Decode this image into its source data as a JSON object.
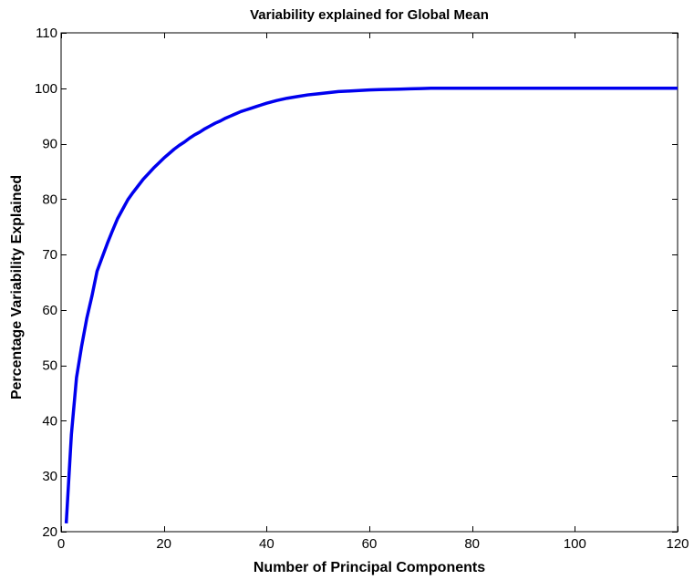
{
  "chart_data": {
    "type": "line",
    "title": "Variability explained for Global Mean",
    "xlabel": "Number of Principal Components",
    "ylabel": "Percentage Variability Explained",
    "xlim": [
      0,
      120
    ],
    "ylim": [
      20,
      110
    ],
    "xticks": [
      0,
      20,
      40,
      60,
      80,
      100,
      120
    ],
    "yticks": [
      20,
      30,
      40,
      50,
      60,
      70,
      80,
      90,
      100,
      110
    ],
    "xtick_labels": [
      "0",
      "20",
      "40",
      "60",
      "80",
      "100",
      "120"
    ],
    "ytick_labels": [
      "20",
      "30",
      "40",
      "50",
      "60",
      "70",
      "80",
      "90",
      "100",
      "110"
    ],
    "grid": false,
    "series": [
      {
        "color": "#0000ee",
        "x": [
          1,
          2,
          3,
          4,
          5,
          6,
          7,
          8,
          9,
          10,
          11,
          12,
          13,
          14,
          15,
          16,
          17,
          18,
          19,
          20,
          21,
          22,
          23,
          24,
          25,
          26,
          27,
          28,
          29,
          30,
          31,
          32,
          33,
          34,
          35,
          36,
          37,
          38,
          39,
          40,
          42,
          44,
          46,
          48,
          50,
          52,
          54,
          56,
          58,
          60,
          62,
          64,
          66,
          68,
          70,
          72,
          75,
          80,
          90,
          100,
          110,
          120
        ],
        "y": [
          21.5,
          37.5,
          47.8,
          53.5,
          58.5,
          62.5,
          67.0,
          69.5,
          72.0,
          74.3,
          76.5,
          78.2,
          79.9,
          81.2,
          82.4,
          83.6,
          84.6,
          85.6,
          86.5,
          87.4,
          88.2,
          89.0,
          89.7,
          90.3,
          91.0,
          91.6,
          92.1,
          92.7,
          93.2,
          93.7,
          94.1,
          94.6,
          95.0,
          95.4,
          95.8,
          96.1,
          96.4,
          96.7,
          97.0,
          97.3,
          97.8,
          98.2,
          98.5,
          98.8,
          99.0,
          99.2,
          99.4,
          99.5,
          99.6,
          99.7,
          99.75,
          99.8,
          99.85,
          99.9,
          99.95,
          100.0,
          100.0,
          100.0,
          100.0,
          100.0,
          100.0,
          100.0
        ]
      }
    ]
  }
}
